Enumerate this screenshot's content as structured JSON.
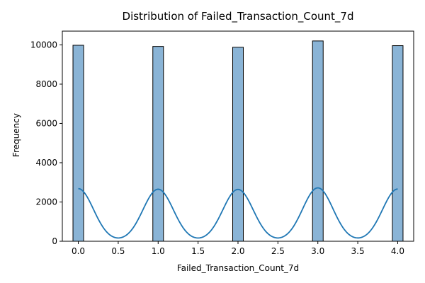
{
  "chart_data": {
    "type": "bar",
    "title": "Distribution of Failed_Transaction_Count_7d",
    "xlabel": "Failed_Transaction_Count_7d",
    "ylabel": "Frequency",
    "xlim": [
      -0.2,
      4.2
    ],
    "ylim": [
      0,
      10700
    ],
    "x_ticks": [
      "0.0",
      "0.5",
      "1.0",
      "1.5",
      "2.0",
      "2.5",
      "3.0",
      "3.5",
      "4.0"
    ],
    "y_ticks": [
      "0",
      "2000",
      "4000",
      "6000",
      "8000",
      "10000"
    ],
    "bin_width": 0.1333,
    "bins": [
      {
        "x": 0,
        "count": 9980
      },
      {
        "x": 1,
        "count": 9920
      },
      {
        "x": 2,
        "count": 9880
      },
      {
        "x": 3,
        "count": 10200
      },
      {
        "x": 4,
        "count": 9960
      }
    ],
    "kde": {
      "peak_heights": [
        2680,
        2650,
        2640,
        2720,
        2660
      ],
      "sigma": 0.19
    },
    "grid": false,
    "colors": {
      "bar_fill": "#8ab4d6",
      "bar_edge": "#000000",
      "kde_line": "#1f77b4"
    }
  }
}
